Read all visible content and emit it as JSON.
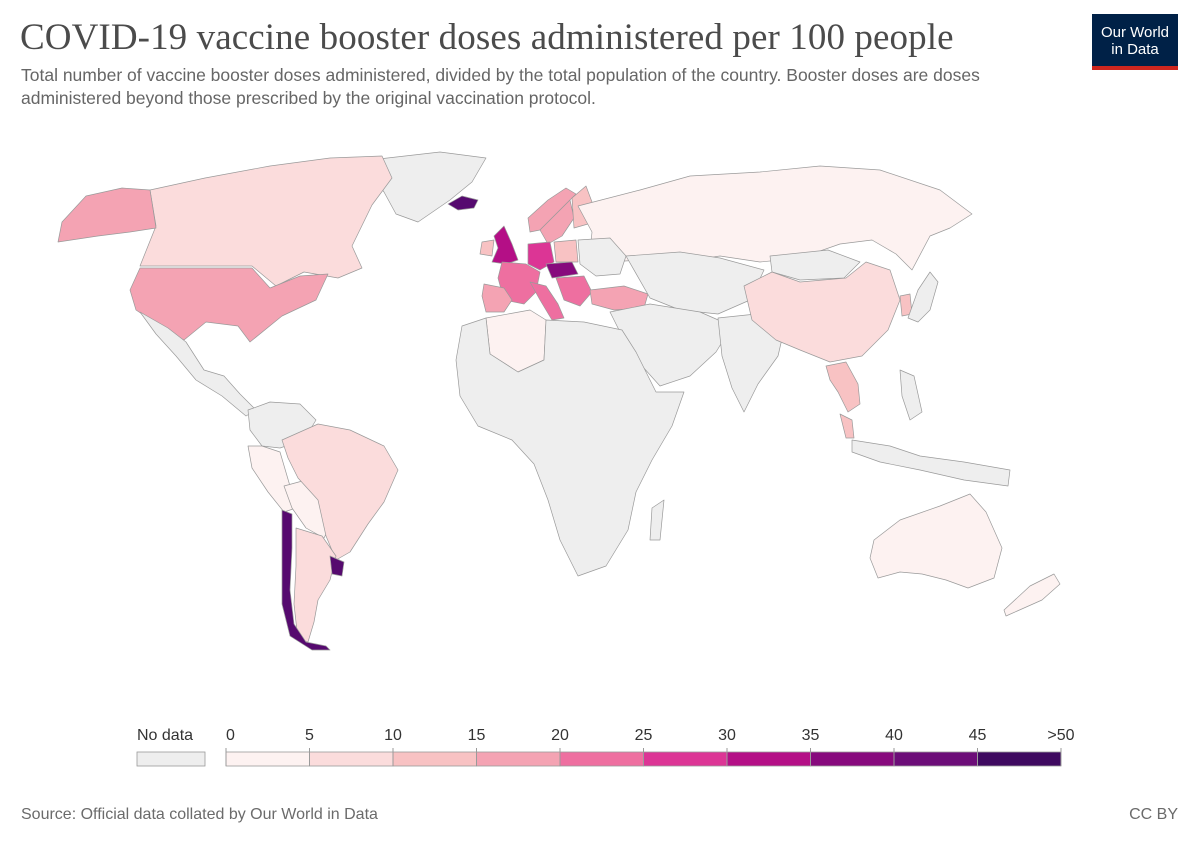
{
  "title": "COVID-19 vaccine booster doses administered per 100 people",
  "subtitle": "Total number of vaccine booster doses administered, divided by the total population of the country. Booster doses are doses administered beyond those prescribed by the original vaccination protocol.",
  "logo": {
    "line1": "Our World",
    "line2": "in Data"
  },
  "source": "Source: Official data collated by Our World in Data",
  "license": "CC BY",
  "legend": {
    "no_data_label": "No data",
    "no_data_color": "#eeeeee",
    "bins": [
      {
        "from": "0",
        "color": "#fdf2f1"
      },
      {
        "from": "5",
        "color": "#fbdcdc"
      },
      {
        "from": "10",
        "color": "#f8c2c3"
      },
      {
        "from": "15",
        "color": "#f4a3b3"
      },
      {
        "from": "20",
        "color": "#ee6fa0"
      },
      {
        "from": "25",
        "color": "#dc3595"
      },
      {
        "from": "30",
        "color": "#b40f86"
      },
      {
        "from": "35",
        "color": "#870a7d"
      },
      {
        "from": "40",
        "color": "#6c0d78"
      },
      {
        "from": "45",
        "color": "#560a6f"
      }
    ],
    "end_label": ">50",
    "end_color": "#3f0a60"
  },
  "map": {
    "regions": [
      {
        "name": "Greenland",
        "bin": -1
      },
      {
        "name": "Canada",
        "bin": 1
      },
      {
        "name": "Alaska",
        "bin": 3
      },
      {
        "name": "United States",
        "bin": 3
      },
      {
        "name": "Mexico and Central America",
        "bin": -1
      },
      {
        "name": "Colombia and Venezuela",
        "bin": -1
      },
      {
        "name": "Peru",
        "bin": 0
      },
      {
        "name": "Bolivia and Paraguay",
        "bin": 0
      },
      {
        "name": "Brazil",
        "bin": 1
      },
      {
        "name": "Argentina",
        "bin": 1
      },
      {
        "name": "Chile",
        "bin": 9
      },
      {
        "name": "Uruguay",
        "bin": 9
      },
      {
        "name": "Iceland",
        "bin": 9
      },
      {
        "name": "United Kingdom",
        "bin": 6
      },
      {
        "name": "Ireland",
        "bin": 2
      },
      {
        "name": "Norway",
        "bin": 3
      },
      {
        "name": "Sweden",
        "bin": 3
      },
      {
        "name": "Finland",
        "bin": 2
      },
      {
        "name": "France",
        "bin": 4
      },
      {
        "name": "Spain and Portugal",
        "bin": 3
      },
      {
        "name": "Germany",
        "bin": 5
      },
      {
        "name": "Poland",
        "bin": 2
      },
      {
        "name": "Hungary and Austria",
        "bin": 7
      },
      {
        "name": "Italy",
        "bin": 4
      },
      {
        "name": "Balkans",
        "bin": 4
      },
      {
        "name": "Turkey",
        "bin": 3
      },
      {
        "name": "Israel",
        "bin": 9
      },
      {
        "name": "United Arab Emirates",
        "bin": 7
      },
      {
        "name": "Russia",
        "bin": 0
      },
      {
        "name": "Ukraine and Belarus",
        "bin": -1
      },
      {
        "name": "Kazakhstan and Central Asia",
        "bin": -1
      },
      {
        "name": "Middle East",
        "bin": -1
      },
      {
        "name": "India and South Asia",
        "bin": -1
      },
      {
        "name": "Mongolia",
        "bin": -1
      },
      {
        "name": "China",
        "bin": 1
      },
      {
        "name": "South Korea",
        "bin": 2
      },
      {
        "name": "Japan",
        "bin": -1
      },
      {
        "name": "Thailand and Cambodia",
        "bin": 2
      },
      {
        "name": "Malaysia",
        "bin": 2
      },
      {
        "name": "Philippines",
        "bin": -1
      },
      {
        "name": "Indonesia",
        "bin": -1
      },
      {
        "name": "Algeria",
        "bin": 0
      },
      {
        "name": "Africa",
        "bin": -1
      },
      {
        "name": "Madagascar",
        "bin": -1
      },
      {
        "name": "Australia",
        "bin": 0
      },
      {
        "name": "New Zealand",
        "bin": 0
      }
    ]
  }
}
